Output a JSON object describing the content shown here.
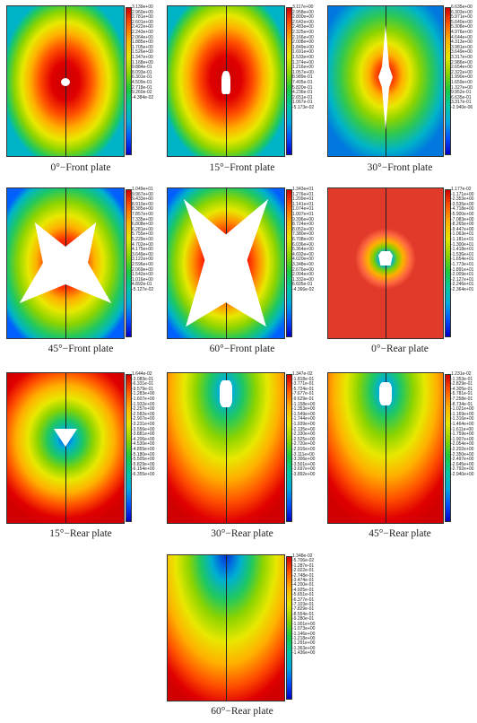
{
  "panels": [
    {
      "caption": "0°−Front plate",
      "ticks": [
        "3.139e+00",
        "2.960e+00",
        "2.781e+00",
        "2.601e+00",
        "2.422e+00",
        "2.243e+00",
        "2.064e+00",
        "1.885e+00",
        "1.705e+00",
        "1.526e+00",
        "1.347e+00",
        "1.168e+00",
        "9.884e-01",
        "8.093e-01",
        "6.301e-01",
        "4.509e-01",
        "2.718e-01",
        "9.260e-02",
        "-4.384e-02"
      ]
    },
    {
      "caption": "15°−Front plate",
      "ticks": [
        "3.117e+00",
        "2.958e+00",
        "2.800e+00",
        "2.642e+00",
        "2.483e+00",
        "2.325e+00",
        "2.166e+00",
        "2.008e+00",
        "1.849e+00",
        "1.691e+00",
        "1.533e+00",
        "1.374e+00",
        "1.216e+00",
        "1.057e+00",
        "8.989e-01",
        "7.405e-01",
        "5.820e-01",
        "4.236e-01",
        "2.651e-01",
        "1.067e-01",
        "-5.173e-02"
      ]
    },
    {
      "caption": "30°−Front plate",
      "ticks": [
        "6.635e+00",
        "6.303e+00",
        "5.971e+00",
        "5.640e+00",
        "5.308e+00",
        "4.976e+00",
        "4.644e+00",
        "4.313e+00",
        "3.981e+00",
        "3.649e+00",
        "3.317e+00",
        "2.986e+00",
        "2.654e+00",
        "2.322e+00",
        "1.990e+00",
        "1.659e+00",
        "1.327e+00",
        "9.952e-01",
        "6.635e-01",
        "3.317e-01",
        "-2.940e-06"
      ]
    },
    {
      "caption": "45°−Front plate",
      "ticks": [
        "1.049e+01",
        "9.967e+00",
        "9.433e+00",
        "8.910e+00",
        "8.385e+00",
        "7.857e+00",
        "7.335e+00",
        "6.808e+00",
        "6.281e+00",
        "5.755e+00",
        "5.229e+00",
        "4.702e+00",
        "4.175e+00",
        "3.649e+00",
        "3.122e+00",
        "2.596e+00",
        "2.069e+00",
        "1.542e+00",
        "1.016e+00",
        "4.892e-01",
        "-5.127e-02"
      ]
    },
    {
      "caption": "60°−Front plate",
      "ticks": [
        "1.343e+01",
        "1.276e+01",
        "1.209e+01",
        "1.141e+01",
        "1.074e+01",
        "1.007e+01",
        "9.396e+00",
        "8.724e+00",
        "8.052e+00",
        "7.380e+00",
        "6.708e+00",
        "6.036e+00",
        "5.364e+00",
        "4.692e+00",
        "4.020e+00",
        "3.348e+00",
        "2.676e+00",
        "2.004e+00",
        "1.332e+00",
        "6.605e-01",
        "-4.366e-02"
      ]
    },
    {
      "caption": "0°−Rear plate",
      "ticks": [
        "1.177e-02",
        "-1.171e+00",
        "-2.353e+00",
        "-3.535e+00",
        "-4.718e+00",
        "-5.900e+00",
        "-7.083e+00",
        "-8.265e+00",
        "-9.447e+00",
        "-1.063e+01",
        "-1.181e+01",
        "-1.300e+01",
        "-1.418e+01",
        "-1.536e+01",
        "-1.654e+01",
        "-1.773e+01",
        "-1.891e+01",
        "-2.009e+01",
        "-2.127e+01",
        "-2.246e+01",
        "-2.364e+01"
      ]
    },
    {
      "caption": "15°−Rear plate",
      "ticks": [
        "1.644e-02",
        "-3.083e-01",
        "-6.331e-01",
        "-9.579e-01",
        "-1.283e+00",
        "-1.607e+00",
        "-1.932e+00",
        "-2.257e+00",
        "-2.582e+00",
        "-2.907e+00",
        "-3.231e+00",
        "-3.556e+00",
        "-3.881e+00",
        "-4.206e+00",
        "-4.530e+00",
        "-4.855e+00",
        "-5.180e+00",
        "-5.505e+00",
        "-5.829e+00",
        "-6.154e+00",
        "-6.355e+00"
      ]
    },
    {
      "caption": "30°−Rear plate",
      "ticks": [
        "1.347e-02",
        "-1.818e-01",
        "-3.771e-01",
        "-5.724e-01",
        "-7.677e-01",
        "-9.629e-01",
        "-1.158e+00",
        "-1.353e+00",
        "-1.549e+00",
        "-1.744e+00",
        "-1.939e+00",
        "-2.135e+00",
        "-2.330e+00",
        "-2.525e+00",
        "-2.720e+00",
        "-2.916e+00",
        "-3.111e+00",
        "-3.306e+00",
        "-3.501e+00",
        "-3.697e+00",
        "-3.892e+00"
      ]
    },
    {
      "caption": "45°−Rear plate",
      "ticks": [
        "1.231e-02",
        "-1.353e-01",
        "-2.829e-01",
        "-4.305e-01",
        "-5.781e-01",
        "-7.258e-01",
        "-8.734e-01",
        "-1.021e+00",
        "-1.169e+00",
        "-1.316e+00",
        "-1.464e+00",
        "-1.611e+00",
        "-1.759e+00",
        "-1.907e+00",
        "-2.054e+00",
        "-2.202e+00",
        "-2.350e+00",
        "-2.497e+00",
        "-2.645e+00",
        "-2.792e+00",
        "-2.940e+00"
      ]
    },
    {
      "caption": "60°−Rear plate",
      "ticks": [
        "1.348e-02",
        "-5.706e-02",
        "-1.287e-01",
        "-2.022e-01",
        "-2.748e-01",
        "-3.474e-01",
        "-4.200e-01",
        "-4.925e-01",
        "-5.651e-01",
        "-6.377e-01",
        "-7.103e-01",
        "-7.829e-01",
        "-8.554e-01",
        "-9.280e-01",
        "-1.001e+00",
        "-1.073e+00",
        "-1.146e+00",
        "-1.218e+00",
        "-1.291e+00",
        "-1.363e+00",
        "-1.436e+00"
      ]
    }
  ]
}
